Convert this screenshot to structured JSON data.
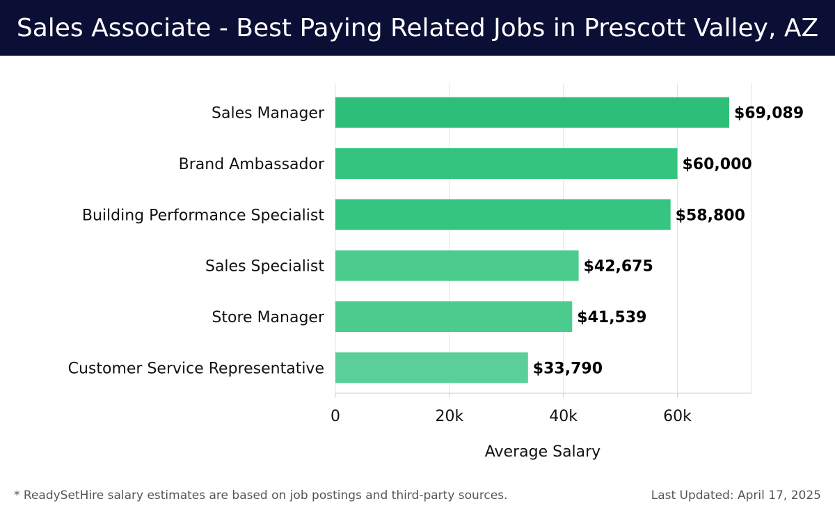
{
  "header": {
    "title": "Sales Associate - Best Paying Related Jobs in Prescott Valley, AZ"
  },
  "chart_data": {
    "type": "bar",
    "orientation": "horizontal",
    "categories": [
      "Sales Manager",
      "Brand Ambassador",
      "Building Performance Specialist",
      "Sales Specialist",
      "Store Manager",
      "Customer Service Representative"
    ],
    "values": [
      69089,
      60000,
      58800,
      42675,
      41539,
      33790
    ],
    "data_labels": [
      "$69,089",
      "$60,000",
      "$58,800",
      "$42,675",
      "$41,539",
      "$33,790"
    ],
    "bar_colors": [
      "#2dbe78",
      "#34c47e",
      "#36c580",
      "#4ccb8f",
      "#4ccb8f",
      "#5acf97"
    ],
    "xlabel": "Average Salary",
    "ylabel": "",
    "xlim": [
      0,
      73000
    ],
    "xticks": [
      0,
      20000,
      40000,
      60000
    ],
    "xtick_labels": [
      "0",
      "20k",
      "40k",
      "60k"
    ],
    "grid": true,
    "legend": "none"
  },
  "footer": {
    "note": "* ReadySetHire salary estimates are based on job postings and third-party sources.",
    "updated": "Last Updated: April 17, 2025"
  }
}
